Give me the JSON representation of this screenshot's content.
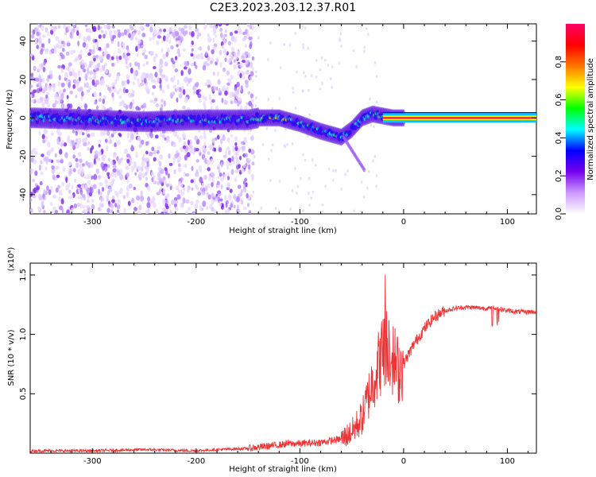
{
  "title": "C2E3.2023.203.12.37.R01",
  "chart_data": [
    {
      "type": "heatmap",
      "xlabel": "Height of straight line (km)",
      "ylabel": "Frequency (Hz)",
      "xlim": [
        -360,
        128
      ],
      "ylim": [
        -50,
        49
      ],
      "x_ticks": [
        -300,
        -200,
        -100,
        0,
        100
      ],
      "x_tick_labels": [
        "-300",
        "-200",
        "-100",
        "0",
        "100"
      ],
      "y_ticks": [
        -40,
        -20,
        0,
        20,
        40
      ],
      "y_tick_labels": [
        "-40",
        "-20",
        "0",
        "20",
        "40"
      ],
      "colorbar": {
        "label": "Normalized spectral amplitude",
        "range": [
          0,
          1
        ],
        "ticks": [
          0.0,
          0.2,
          0.4,
          0.6,
          0.8
        ],
        "tick_labels": [
          "0.0",
          "0.2",
          "0.4",
          "0.6",
          "0.8"
        ],
        "colormap": [
          "#ffffff",
          "#cc99ff",
          "#7700ee",
          "#0000ff",
          "#00ffff",
          "#00ff00",
          "#ffff00",
          "#ff7700",
          "#ff0000",
          "#ff0066"
        ]
      },
      "ridge": [
        {
          "x": -355,
          "y": 0
        },
        {
          "x": -300,
          "y": -1
        },
        {
          "x": -250,
          "y": -2
        },
        {
          "x": -200,
          "y": -1
        },
        {
          "x": -150,
          "y": -1
        },
        {
          "x": -140,
          "y": 0
        },
        {
          "x": -120,
          "y": 0
        },
        {
          "x": -100,
          "y": -3
        },
        {
          "x": -80,
          "y": -7
        },
        {
          "x": -60,
          "y": -10
        },
        {
          "x": -50,
          "y": -6
        },
        {
          "x": -40,
          "y": 0
        },
        {
          "x": -30,
          "y": 2
        },
        {
          "x": -20,
          "y": 1
        },
        {
          "x": -10,
          "y": 0
        },
        {
          "x": 0,
          "y": 0
        },
        {
          "x": 128,
          "y": 0
        }
      ],
      "noise_extent_x": [
        -360,
        -145
      ],
      "grid": false
    },
    {
      "type": "line",
      "xlabel": "Height of straight line (km)",
      "ylabel": "SNR (10 * v/v)",
      "y_multiplier": "(x10⁴)",
      "xlim": [
        -360,
        128
      ],
      "ylim": [
        0,
        1.6
      ],
      "x_ticks": [
        -300,
        -200,
        -100,
        0,
        100
      ],
      "x_tick_labels": [
        "-300",
        "-200",
        "-100",
        "0",
        "100"
      ],
      "y_ticks": [
        0.5,
        1.0,
        1.5
      ],
      "y_tick_labels": [
        "0.5",
        "1.0",
        "1.5"
      ],
      "color": "#ee3333",
      "series": [
        {
          "x": [
            -360,
            -300,
            -250,
            -200,
            -180,
            -150,
            -130,
            -110,
            -100,
            -80,
            -60,
            -50,
            -40,
            -30,
            -20,
            -15,
            -10,
            -5,
            0,
            10,
            20,
            30,
            40,
            50,
            60,
            80,
            90,
            100,
            110,
            128
          ],
          "y": [
            0.02,
            0.02,
            0.03,
            0.02,
            0.03,
            0.04,
            0.06,
            0.08,
            0.08,
            0.09,
            0.12,
            0.18,
            0.3,
            0.6,
            0.85,
            0.95,
            0.8,
            0.7,
            0.75,
            0.92,
            1.05,
            1.15,
            1.2,
            1.22,
            1.23,
            1.22,
            1.22,
            1.2,
            1.19,
            1.19
          ]
        }
      ],
      "grid": false
    }
  ]
}
